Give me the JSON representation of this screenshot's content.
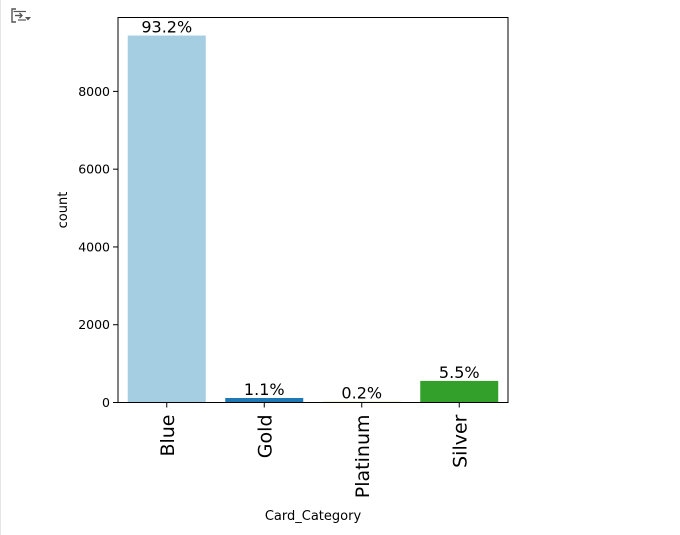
{
  "output_toolbar": {
    "icon": "output-settings-icon"
  },
  "chart_data": {
    "type": "bar",
    "categories": [
      "Blue",
      "Gold",
      "Platinum",
      "Silver"
    ],
    "values": [
      9436,
      116,
      20,
      555
    ],
    "data_labels": [
      "93.2%",
      "1.1%",
      "0.2%",
      "5.5%"
    ],
    "colors": [
      "#a6cee3",
      "#1f78b4",
      "#b2df8a",
      "#33a02c"
    ],
    "xlabel": "Card_Category",
    "ylabel": "count",
    "ylim": [
      0,
      9900
    ],
    "yticks": [
      0,
      2000,
      4000,
      6000,
      8000
    ],
    "grid": false,
    "title": ""
  }
}
